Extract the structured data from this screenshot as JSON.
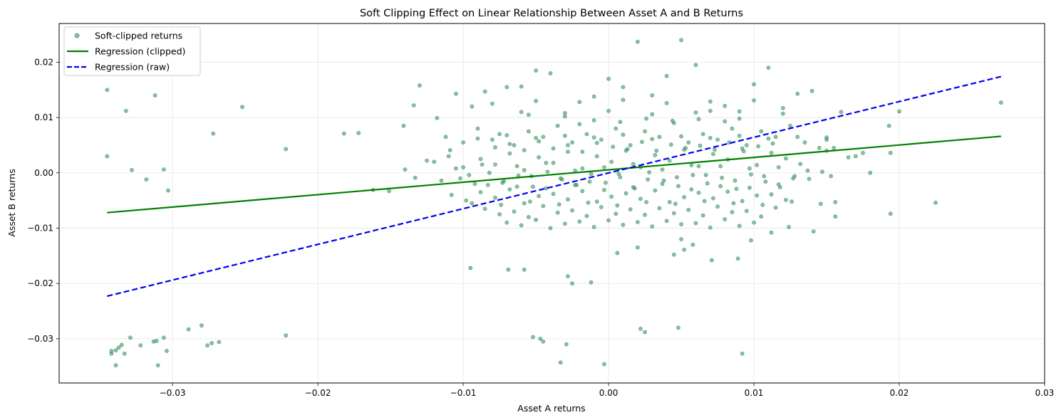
{
  "chart_data": {
    "type": "scatter",
    "title": "Soft Clipping Effect on Linear Relationship Between Asset A and B Returns",
    "xlabel": "Asset A returns",
    "ylabel": "Asset B returns",
    "xlim": [
      -0.0378,
      0.03
    ],
    "ylim": [
      -0.038,
      0.027
    ],
    "xticks": [
      -0.03,
      -0.02,
      -0.01,
      0.0,
      0.01,
      0.02,
      0.03
    ],
    "xtick_labels": [
      "−0.03",
      "−0.02",
      "−0.01",
      "0.00",
      "0.01",
      "0.02",
      "0.03"
    ],
    "yticks": [
      -0.03,
      -0.02,
      -0.01,
      0.0,
      0.01,
      0.02
    ],
    "ytick_labels": [
      "−0.03",
      "−0.02",
      "−0.01",
      "0.00",
      "0.01",
      "0.02"
    ],
    "grid": true,
    "legend_position": "top-left",
    "colors": {
      "scatter": "#2e8b57",
      "regression_clipped": "#008000",
      "regression_raw": "#0000ee"
    },
    "series": [
      {
        "name": "Soft-clipped returns",
        "kind": "scatter",
        "x": [
          -0.0345,
          -0.0345,
          -0.0312,
          -0.0332,
          -0.0252,
          -0.0272,
          -0.0222,
          -0.0328,
          -0.0318,
          -0.0306,
          -0.0303,
          -0.0342,
          -0.0339,
          -0.0337,
          -0.0335,
          -0.0333,
          -0.0342,
          -0.0329,
          -0.0322,
          -0.0313,
          -0.031,
          -0.0306,
          -0.0304,
          -0.0289,
          -0.028,
          -0.0276,
          -0.0273,
          -0.0268,
          -0.0222,
          -0.0339,
          -0.0311,
          -0.0182,
          -0.0172,
          -0.0162,
          -0.0151,
          -0.013,
          -0.0141,
          -0.0134,
          -0.0118,
          -0.0109,
          -0.01,
          -0.0094,
          -0.0105,
          -0.0085,
          -0.007,
          -0.006,
          -0.0055,
          -0.005,
          -0.004,
          -0.003,
          -0.002,
          -0.001,
          0.0,
          0.001,
          0.002,
          0.003,
          0.004,
          0.005,
          0.006,
          0.007,
          0.008,
          0.009,
          0.01,
          0.011,
          0.012,
          0.013,
          0.014,
          0.015,
          0.016,
          0.017,
          0.018,
          0.0193,
          0.02,
          0.0225,
          0.027,
          0.0194,
          0.0194,
          0.0156,
          0.0156,
          0.0141,
          0.0124,
          0.0112,
          0.0098,
          0.0089,
          0.0071,
          0.0052,
          0.0045,
          -0.0012,
          -0.0028,
          -0.0025,
          -0.0033,
          -0.0045,
          -0.0058,
          -0.0069,
          -0.0095,
          0.0022,
          0.0048,
          0.0092,
          0.0025,
          -0.0029,
          -0.0003,
          -0.0047,
          -0.0052,
          0.005,
          0.0058,
          0.002,
          0.0006,
          -0.009,
          -0.008,
          -0.0075,
          -0.0065,
          -0.0055,
          -0.0045,
          -0.0035,
          -0.0025,
          -0.0015,
          -0.0005,
          0.0005,
          0.0015,
          0.0025,
          0.0035,
          0.0045,
          0.0055,
          0.0065,
          0.0075,
          0.0085,
          0.0095,
          0.0105,
          0.0115,
          0.0125,
          0.0135,
          0.0145,
          -0.012,
          -0.011,
          -0.01,
          -0.0088,
          -0.0078,
          -0.0068,
          -0.0058,
          -0.0048,
          -0.0038,
          -0.0028,
          -0.0018,
          -0.0008,
          0.0002,
          0.0012,
          0.0022,
          0.0032,
          0.0042,
          0.0052,
          0.0062,
          0.0072,
          0.0082,
          0.0092,
          0.0102,
          0.0112,
          0.0122,
          0.0132,
          -0.0102,
          -0.0092,
          -0.0082,
          -0.0072,
          -0.0062,
          -0.0052,
          -0.0042,
          -0.0032,
          -0.0022,
          -0.0012,
          -0.0002,
          0.0008,
          0.0018,
          0.0028,
          0.0038,
          0.0048,
          0.0058,
          0.0068,
          0.0078,
          0.0088,
          0.0098,
          0.0108,
          0.0118,
          0.0128,
          0.0138,
          -0.0108,
          -0.0098,
          -0.0088,
          -0.0078,
          -0.0068,
          -0.0058,
          -0.0048,
          -0.0038,
          -0.0028,
          -0.0018,
          -0.0008,
          0.0002,
          0.0012,
          0.0022,
          0.0032,
          0.0042,
          0.0052,
          0.0062,
          0.0072,
          0.0082,
          0.0092,
          0.0102,
          0.0112,
          0.0122,
          -0.0085,
          -0.0075,
          -0.0065,
          -0.0055,
          -0.0045,
          -0.0035,
          -0.0025,
          -0.0015,
          -0.0005,
          0.0005,
          0.0015,
          0.0025,
          0.0035,
          0.0045,
          0.0055,
          0.0065,
          0.0075,
          0.0085,
          0.0095,
          0.0105,
          0.0115,
          -0.007,
          -0.006,
          -0.005,
          -0.004,
          -0.003,
          -0.002,
          -0.001,
          0.0,
          0.001,
          0.002,
          0.003,
          0.004,
          0.005,
          0.006,
          0.007,
          0.008,
          0.009,
          0.01,
          -0.008,
          -0.005,
          -0.002,
          0.001,
          0.004,
          0.007,
          0.01,
          -0.006,
          -0.003,
          0.0,
          0.003,
          0.006,
          0.009,
          0.012,
          0.015,
          0.0165,
          0.0175,
          0.0155,
          -0.014,
          -0.0133,
          -0.0125,
          -0.0115,
          -0.0105,
          -0.0096,
          -0.0087,
          -0.0083,
          -0.0073,
          -0.0063,
          -0.0053,
          -0.0043,
          -0.0033,
          -0.0023,
          -0.0013,
          -0.0003,
          0.0007,
          0.0017,
          0.0027,
          0.0037,
          0.0047,
          0.0057,
          0.0067,
          0.0077,
          0.0087,
          0.0097,
          0.0107,
          0.0117,
          0.0127,
          0.0137,
          0.0147,
          0.0153,
          -0.0078,
          -0.0068,
          -0.0058,
          -0.0048,
          -0.0038,
          -0.0028,
          -0.0018,
          -0.0008,
          0.0003,
          0.0013,
          0.0023,
          0.0033,
          0.0043,
          0.0053,
          0.0063,
          0.0073,
          0.0083,
          0.0093,
          0.0103,
          0.0113,
          -0.0063,
          -0.0043,
          -0.0023,
          -0.0003,
          0.0017,
          0.0037,
          0.0057,
          0.0077,
          0.0097,
          0.0117,
          -0.001,
          0.0008,
          0.0026,
          0.0044,
          0.0062,
          0.008,
          -0.0094,
          -0.0074,
          -0.0054,
          -0.0034,
          -0.0014,
          0.0006,
          0.0026,
          0.0046,
          0.0066,
          0.0086,
          0.0106,
          0.0126,
          0.0146,
          -0.0112,
          -0.009,
          -0.007,
          -0.005,
          -0.003,
          -0.001,
          0.001,
          0.003,
          0.005,
          0.007,
          0.009,
          0.011,
          0.013,
          0.015
        ],
        "y": [
          0.015,
          0.003,
          0.014,
          0.0112,
          0.0119,
          0.0071,
          0.0043,
          0.0005,
          -0.0012,
          0.0006,
          -0.0032,
          -0.0327,
          -0.0321,
          -0.0316,
          -0.0311,
          -0.0327,
          -0.0322,
          -0.0298,
          -0.0312,
          -0.0305,
          -0.0348,
          -0.0298,
          -0.0322,
          -0.0283,
          -0.0276,
          -0.0312,
          -0.0308,
          -0.0306,
          -0.0294,
          -0.0348,
          -0.0304,
          0.0071,
          0.0072,
          -0.0031,
          -0.0033,
          0.0158,
          0.0085,
          0.0122,
          0.0099,
          0.0041,
          0.0055,
          0.012,
          0.0143,
          0.0147,
          0.0155,
          0.0156,
          0.0105,
          0.0185,
          0.018,
          0.0102,
          0.0088,
          0.0138,
          0.017,
          0.0155,
          0.0237,
          0.014,
          0.0175,
          0.024,
          0.0195,
          0.0112,
          0.0121,
          0.0098,
          0.016,
          0.019,
          0.0117,
          0.0143,
          0.0148,
          0.006,
          0.011,
          0.003,
          0.0,
          0.0085,
          0.0111,
          -0.0054,
          0.0127,
          0.0036,
          -0.0074,
          -0.0079,
          -0.0053,
          -0.0106,
          -0.0098,
          -0.0108,
          -0.0122,
          -0.0155,
          -0.0158,
          -0.0139,
          -0.0148,
          -0.0198,
          -0.0187,
          -0.02,
          -0.0343,
          -0.0305,
          -0.0175,
          -0.0175,
          -0.0172,
          -0.0282,
          -0.028,
          -0.0327,
          -0.0288,
          -0.031,
          -0.0346,
          -0.03,
          -0.0297,
          -0.012,
          -0.013,
          -0.0135,
          -0.0145,
          0.008,
          0.006,
          0.007,
          0.005,
          0.0075,
          0.0065,
          0.0085,
          0.0055,
          0.007,
          0.006,
          0.008,
          0.005,
          0.0075,
          0.0065,
          0.009,
          0.0055,
          0.007,
          0.006,
          0.008,
          0.005,
          0.0075,
          0.0065,
          0.0085,
          0.0055,
          0.0045,
          0.002,
          0.003,
          0.001,
          0.0025,
          0.0015,
          0.0035,
          0.0005,
          0.0028,
          0.0018,
          0.0038,
          0.0008,
          0.003,
          0.002,
          0.004,
          0.001,
          0.0032,
          0.0022,
          0.0042,
          0.0012,
          0.0034,
          0.0024,
          0.0044,
          0.0014,
          0.0036,
          0.0026,
          0.0016,
          -0.001,
          -0.002,
          0.0,
          -0.0015,
          -0.0005,
          -0.0025,
          0.0002,
          -0.0012,
          -0.0022,
          -0.0002,
          -0.0018,
          -0.0008,
          -0.0028,
          0.0001,
          -0.0014,
          -0.0024,
          -0.0004,
          -0.0019,
          -0.0009,
          -0.0029,
          -0.0003,
          -0.0016,
          -0.0026,
          -0.0006,
          -0.0011,
          -0.004,
          -0.005,
          -0.0035,
          -0.0045,
          -0.003,
          -0.0055,
          -0.0042,
          -0.0038,
          -0.0048,
          -0.0033,
          -0.0052,
          -0.0043,
          -0.0037,
          -0.0047,
          -0.0032,
          -0.0053,
          -0.0044,
          -0.0036,
          -0.0046,
          -0.0034,
          -0.0051,
          -0.0041,
          -0.0039,
          -0.0049,
          -0.0065,
          -0.0075,
          -0.007,
          -0.008,
          -0.006,
          -0.0072,
          -0.0068,
          -0.0078,
          -0.0062,
          -0.0074,
          -0.0066,
          -0.0076,
          -0.0064,
          -0.0073,
          -0.0067,
          -0.0077,
          -0.0061,
          -0.0071,
          -0.0069,
          -0.0079,
          -0.0063,
          -0.009,
          -0.0095,
          -0.0085,
          -0.01,
          -0.0092,
          -0.0088,
          -0.0098,
          -0.0086,
          -0.0094,
          -0.0089,
          -0.0097,
          -0.0087,
          -0.0093,
          -0.0091,
          -0.0099,
          -0.0084,
          -0.0096,
          -0.009,
          0.0125,
          0.013,
          0.0128,
          0.0132,
          0.0126,
          0.0129,
          0.0131,
          0.011,
          0.0108,
          0.0112,
          0.0106,
          0.0109,
          0.0111,
          0.0107,
          0.004,
          0.0028,
          0.0036,
          0.0045,
          0.0006,
          -0.0009,
          0.0022,
          -0.0014,
          0.0008,
          -0.0004,
          0.0015,
          -0.0022,
          -0.0018,
          0.0012,
          -0.0006,
          0.0018,
          -0.001,
          0.0004,
          -0.0016,
          0.001,
          -0.0002,
          0.0016,
          -0.0012,
          0.0006,
          -0.0008,
          0.0014,
          -0.0004,
          0.0012,
          -0.0014,
          0.0008,
          -0.0006,
          0.001,
          -0.001,
          0.0004,
          0.0002,
          -0.0006,
          0.0046,
          0.0052,
          0.0041,
          0.0057,
          0.0044,
          0.005,
          0.0038,
          0.0054,
          0.0047,
          0.0043,
          0.0056,
          0.004,
          0.0051,
          0.0045,
          0.0049,
          0.0042,
          0.0055,
          0.0039,
          0.0048,
          0.0053,
          -0.0025,
          -0.0028,
          -0.0022,
          -0.0031,
          -0.0026,
          -0.002,
          -0.003,
          -0.0024,
          -0.0027,
          -0.0021,
          0.0095,
          0.0092,
          0.0098,
          0.0094,
          0.0097,
          0.0093,
          -0.0055,
          -0.0058,
          -0.0052,
          -0.0057,
          -0.0054,
          -0.0059,
          -0.0053,
          -0.0056,
          -0.0051,
          -0.0055,
          -0.0058,
          -0.0052,
          -0.0056,
          0.0065,
          0.0062,
          0.0068,
          0.0063,
          0.0067,
          0.0064,
          0.0069,
          0.0061,
          0.0066,
          0.0063,
          0.0067,
          0.0062,
          0.0065,
          0.0064
        ]
      },
      {
        "name": "Regression (clipped)",
        "kind": "line",
        "style": "solid",
        "x": [
          -0.0345,
          0.027
        ],
        "y": [
          -0.0072,
          0.0066
        ]
      },
      {
        "name": "Regression (raw)",
        "kind": "line",
        "style": "dashed",
        "x": [
          -0.0345,
          0.027
        ],
        "y": [
          -0.0223,
          0.0174
        ]
      }
    ]
  }
}
